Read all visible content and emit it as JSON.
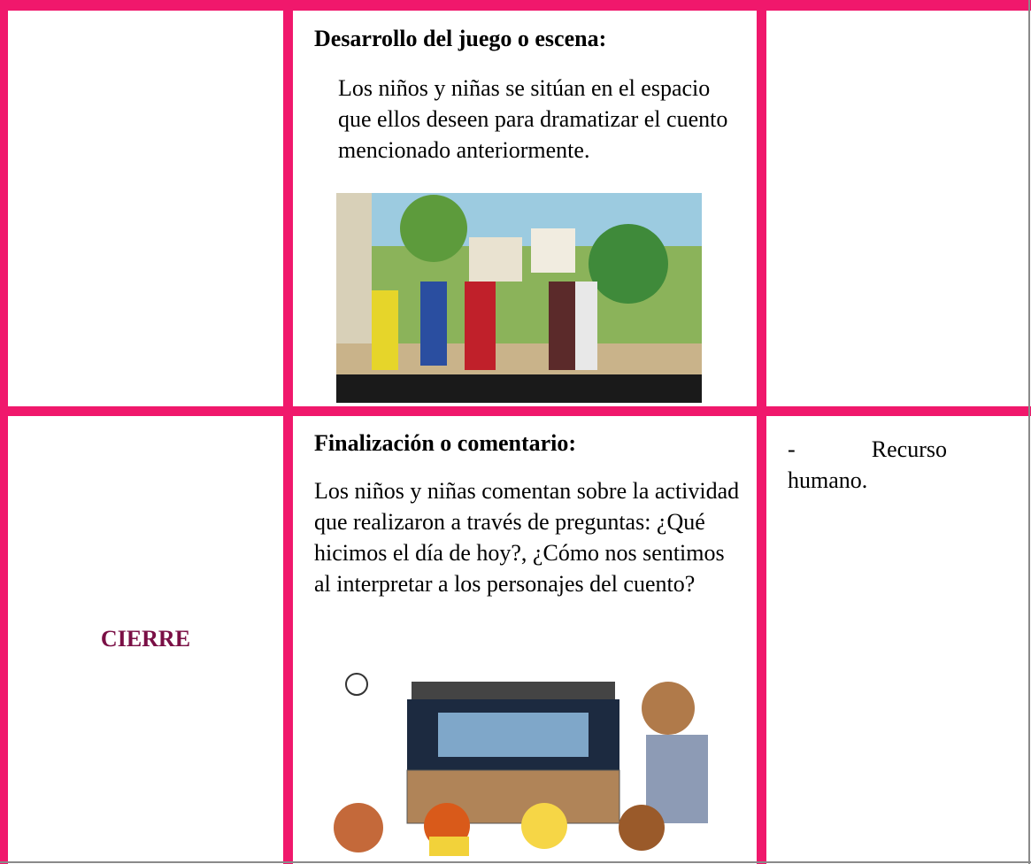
{
  "table": {
    "rows": [
      {
        "activity": {
          "heading": "Desarrollo del juego o escena:",
          "text": "Los niños y niñas se sitúan en el espacio que ellos deseen para dramatizar el cuento mencionado anteriormente."
        }
      },
      {
        "stage": "CIERRE",
        "activity": {
          "heading": "Finalización o comentario:",
          "text": "Los niños y niñas comentan sobre la actividad que realizaron a través de preguntas: ¿Qué hicimos el día de hoy?, ¿Cómo nos sentimos al interpretar a los personajes del cuento?"
        },
        "resources": "- Recurso humano."
      }
    ]
  }
}
